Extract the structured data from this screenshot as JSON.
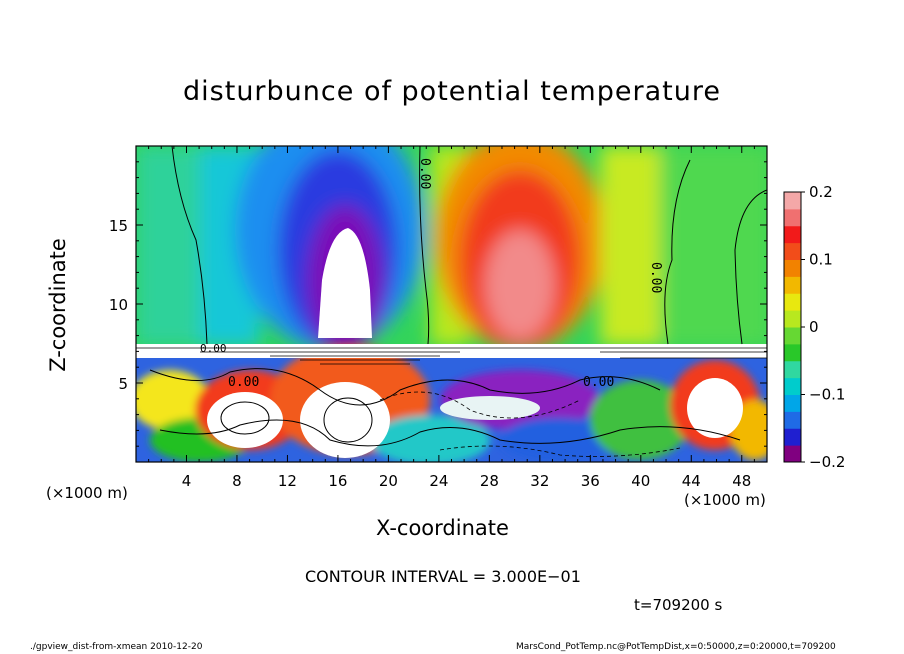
{
  "chart_data": {
    "type": "heatmap",
    "title": "disturbunce of potential temperature",
    "xlabel": "X-coordinate",
    "ylabel": "Z-coordinate",
    "x_unit": "(×1000 m)",
    "xlim": [
      0,
      50
    ],
    "ylim": [
      0,
      20
    ],
    "x_ticks": [
      4,
      8,
      12,
      16,
      20,
      24,
      28,
      32,
      36,
      40,
      44,
      48
    ],
    "y_ticks": [
      5,
      10,
      15
    ],
    "colorbar": {
      "range": [
        -0.2,
        0.2
      ],
      "tick_labels": [
        "0.2",
        "0.1",
        "0",
        "−0.1",
        "−0.2"
      ],
      "tick_values": [
        0.2,
        0.1,
        0,
        -0.1,
        -0.2
      ],
      "colors": [
        "#800080",
        "#1f1fd0",
        "#1f6be6",
        "#00a6e8",
        "#00cccc",
        "#30d8a0",
        "#29c829",
        "#66d833",
        "#b8e81f",
        "#e8e80f",
        "#f2b800",
        "#f28200",
        "#f24d1a",
        "#f21a1a",
        "#f07070",
        "#f4a8a8"
      ]
    },
    "contour_labels": [
      "0.00",
      "0.00",
      "0.00",
      "0.00",
      "0.00"
    ],
    "contour_interval": "CONTOUR INTERVAL = 3.000E−01",
    "time": "t=709200 s"
  },
  "footer": {
    "left": "./gpview_dist-from-xmean 2010-12-20",
    "right": "MarsCond_PotTemp.nc@PotTempDist,x=0:50000,z=0:20000,t=709200"
  }
}
